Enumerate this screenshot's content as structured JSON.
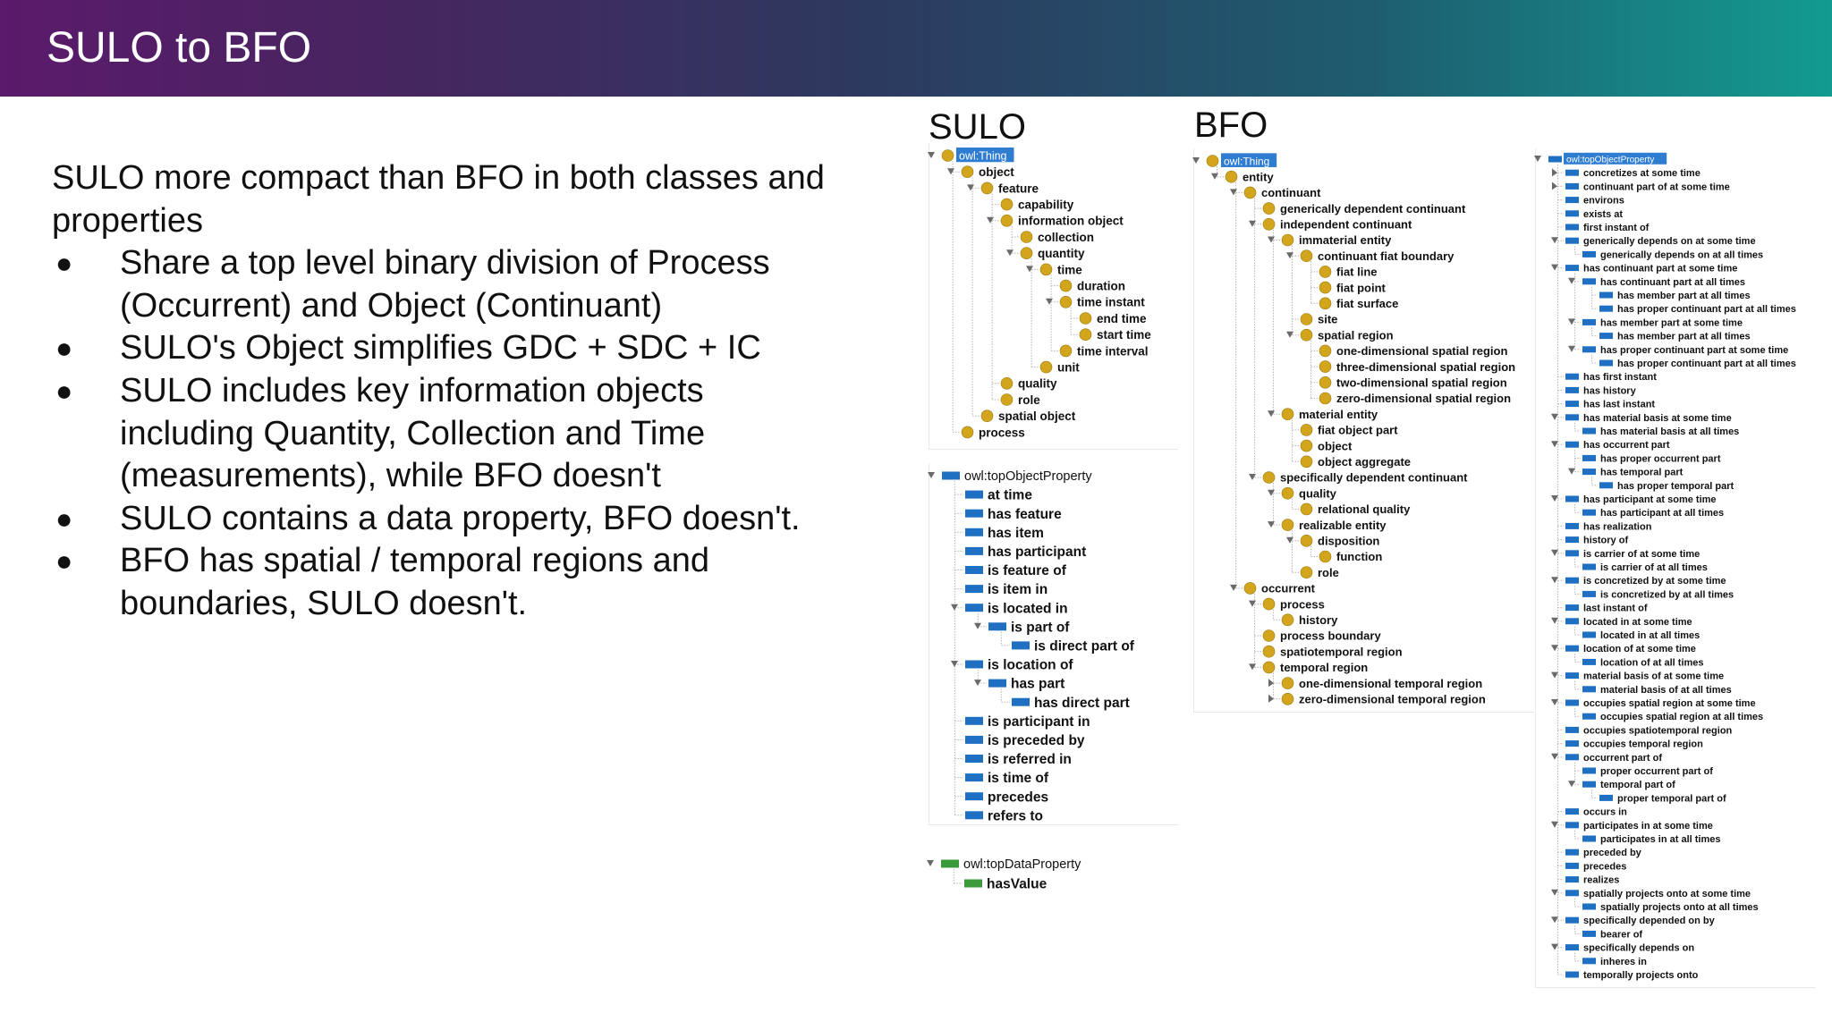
{
  "header": {
    "title": "SULO to BFO"
  },
  "intro": "SULO more compact than BFO in both classes and properties",
  "bullets": [
    "Share a top level binary division of Process (Occurrent) and Object (Continuant)",
    "SULO's Object simplifies GDC + SDC + IC",
    "SULO includes key information objects including Quantity, Collection and Time (measurements), while BFO doesn't",
    "SULO contains a data property, BFO doesn't.",
    "BFO has spatial / temporal regions and boundaries, SULO doesn't."
  ],
  "bullet_glyph": "●",
  "sulo_label": "SULO",
  "bfo_label": "BFO",
  "colors": {
    "class": "#d2a51c",
    "object_property": "#1f6fc2",
    "data_property": "#3a9a3a",
    "root_highlight": "#2e7dd1"
  },
  "trees": [
    {
      "id": "sulo-classes",
      "kind": "class",
      "nodes": [
        [
          0,
          "owl:Thing",
          1,
          1
        ],
        [
          1,
          "object",
          1,
          0
        ],
        [
          2,
          "feature",
          1,
          0
        ],
        [
          3,
          "capability",
          0,
          0
        ],
        [
          3,
          "information object",
          1,
          0
        ],
        [
          4,
          "collection",
          0,
          0
        ],
        [
          4,
          "quantity",
          1,
          0
        ],
        [
          5,
          "time",
          1,
          0
        ],
        [
          6,
          "duration",
          0,
          0
        ],
        [
          6,
          "time instant",
          1,
          0
        ],
        [
          7,
          "end time",
          0,
          0
        ],
        [
          7,
          "start time",
          0,
          0
        ],
        [
          6,
          "time interval",
          0,
          0
        ],
        [
          5,
          "unit",
          0,
          0
        ],
        [
          3,
          "quality",
          0,
          0
        ],
        [
          3,
          "role",
          0,
          0
        ],
        [
          2,
          "spatial object",
          0,
          0
        ],
        [
          1,
          "process",
          0,
          0
        ]
      ]
    },
    {
      "id": "sulo-object-properties",
      "kind": "object_property",
      "nodes": [
        [
          0,
          "owl:topObjectProperty",
          1,
          0
        ],
        [
          1,
          "at time",
          0,
          0
        ],
        [
          1,
          "has feature",
          0,
          0
        ],
        [
          1,
          "has item",
          0,
          0
        ],
        [
          1,
          "has participant",
          0,
          0
        ],
        [
          1,
          "is feature of",
          0,
          0
        ],
        [
          1,
          "is item in",
          0,
          0
        ],
        [
          1,
          "is located in",
          1,
          0
        ],
        [
          2,
          "is part of",
          1,
          0
        ],
        [
          3,
          "is direct part of",
          0,
          0
        ],
        [
          1,
          "is location of",
          1,
          0
        ],
        [
          2,
          "has part",
          1,
          0
        ],
        [
          3,
          "has direct part",
          0,
          0
        ],
        [
          1,
          "is participant in",
          0,
          0
        ],
        [
          1,
          "is preceded by",
          0,
          0
        ],
        [
          1,
          "is referred in",
          0,
          0
        ],
        [
          1,
          "is time of",
          0,
          0
        ],
        [
          1,
          "precedes",
          0,
          0
        ],
        [
          1,
          "refers to",
          0,
          0
        ]
      ]
    },
    {
      "id": "sulo-data-properties",
      "kind": "data_property",
      "nodes": [
        [
          0,
          "owl:topDataProperty",
          1,
          0
        ],
        [
          1,
          "hasValue",
          0,
          0
        ]
      ]
    },
    {
      "id": "bfo-classes",
      "kind": "class",
      "nodes": [
        [
          0,
          "owl:Thing",
          1,
          1
        ],
        [
          1,
          "entity",
          1,
          0
        ],
        [
          2,
          "continuant",
          1,
          0
        ],
        [
          3,
          "generically dependent continuant",
          0,
          0
        ],
        [
          3,
          "independent continuant",
          1,
          0
        ],
        [
          4,
          "immaterial entity",
          1,
          0
        ],
        [
          5,
          "continuant fiat boundary",
          1,
          0
        ],
        [
          6,
          "fiat line",
          0,
          0
        ],
        [
          6,
          "fiat point",
          0,
          0
        ],
        [
          6,
          "fiat surface",
          0,
          0
        ],
        [
          5,
          "site",
          0,
          0
        ],
        [
          5,
          "spatial region",
          1,
          0
        ],
        [
          6,
          "one-dimensional spatial region",
          0,
          0
        ],
        [
          6,
          "three-dimensional spatial region",
          0,
          0
        ],
        [
          6,
          "two-dimensional spatial region",
          0,
          0
        ],
        [
          6,
          "zero-dimensional spatial region",
          0,
          0
        ],
        [
          4,
          "material entity",
          1,
          0
        ],
        [
          5,
          "fiat object part",
          0,
          0
        ],
        [
          5,
          "object",
          0,
          0
        ],
        [
          5,
          "object aggregate",
          0,
          0
        ],
        [
          3,
          "specifically dependent continuant",
          1,
          0
        ],
        [
          4,
          "quality",
          1,
          0
        ],
        [
          5,
          "relational quality",
          0,
          0
        ],
        [
          4,
          "realizable entity",
          1,
          0
        ],
        [
          5,
          "disposition",
          1,
          0
        ],
        [
          6,
          "function",
          0,
          0
        ],
        [
          5,
          "role",
          0,
          0
        ],
        [
          2,
          "occurrent",
          1,
          0
        ],
        [
          3,
          "process",
          1,
          0
        ],
        [
          4,
          "history",
          0,
          0
        ],
        [
          3,
          "process boundary",
          0,
          0
        ],
        [
          3,
          "spatiotemporal region",
          0,
          0
        ],
        [
          3,
          "temporal region",
          1,
          0
        ],
        [
          4,
          "one-dimensional temporal region",
          2,
          0
        ],
        [
          4,
          "zero-dimensional temporal region",
          2,
          0
        ]
      ]
    },
    {
      "id": "bfo-object-properties",
      "kind": "object_property",
      "nodes": [
        [
          0,
          "owl:topObjectProperty",
          1,
          1
        ],
        [
          1,
          "concretizes at some time",
          2,
          0
        ],
        [
          1,
          "continuant part of at some time",
          2,
          0
        ],
        [
          1,
          "environs",
          0,
          0
        ],
        [
          1,
          "exists at",
          0,
          0
        ],
        [
          1,
          "first instant of",
          0,
          0
        ],
        [
          1,
          "generically depends on at some time",
          1,
          0
        ],
        [
          2,
          "generically depends on at all times",
          0,
          0
        ],
        [
          1,
          "has continuant part at some time",
          1,
          0
        ],
        [
          2,
          "has continuant part at all times",
          1,
          0
        ],
        [
          3,
          "has member part at all times",
          0,
          0
        ],
        [
          3,
          "has proper continuant part at all times",
          0,
          0
        ],
        [
          2,
          "has member part at some time",
          1,
          0
        ],
        [
          3,
          "has member part at all times",
          0,
          0
        ],
        [
          2,
          "has proper continuant part at some time",
          1,
          0
        ],
        [
          3,
          "has proper continuant part at all times",
          0,
          0
        ],
        [
          1,
          "has first instant",
          0,
          0
        ],
        [
          1,
          "has history",
          0,
          0
        ],
        [
          1,
          "has last instant",
          0,
          0
        ],
        [
          1,
          "has material basis at some time",
          1,
          0
        ],
        [
          2,
          "has material basis at all times",
          0,
          0
        ],
        [
          1,
          "has occurrent part",
          1,
          0
        ],
        [
          2,
          "has proper occurrent part",
          0,
          0
        ],
        [
          2,
          "has temporal part",
          1,
          0
        ],
        [
          3,
          "has proper temporal part",
          0,
          0
        ],
        [
          1,
          "has participant at some time",
          1,
          0
        ],
        [
          2,
          "has participant at all times",
          0,
          0
        ],
        [
          1,
          "has realization",
          0,
          0
        ],
        [
          1,
          "history of",
          0,
          0
        ],
        [
          1,
          "is carrier of at some time",
          1,
          0
        ],
        [
          2,
          "is carrier of at all times",
          0,
          0
        ],
        [
          1,
          "is concretized by at some time",
          1,
          0
        ],
        [
          2,
          "is concretized by at all times",
          0,
          0
        ],
        [
          1,
          "last instant of",
          0,
          0
        ],
        [
          1,
          "located in at some time",
          1,
          0
        ],
        [
          2,
          "located in at all times",
          0,
          0
        ],
        [
          1,
          "location of at some time",
          1,
          0
        ],
        [
          2,
          "location of at all times",
          0,
          0
        ],
        [
          1,
          "material basis of at some time",
          1,
          0
        ],
        [
          2,
          "material basis of at all times",
          0,
          0
        ],
        [
          1,
          "occupies spatial region at some time",
          1,
          0
        ],
        [
          2,
          "occupies spatial region at all times",
          0,
          0
        ],
        [
          1,
          "occupies spatiotemporal region",
          0,
          0
        ],
        [
          1,
          "occupies temporal region",
          0,
          0
        ],
        [
          1,
          "occurrent part of",
          1,
          0
        ],
        [
          2,
          "proper occurrent part of",
          0,
          0
        ],
        [
          2,
          "temporal part of",
          1,
          0
        ],
        [
          3,
          "proper temporal part of",
          0,
          0
        ],
        [
          1,
          "occurs in",
          0,
          0
        ],
        [
          1,
          "participates in at some time",
          1,
          0
        ],
        [
          2,
          "participates in at all times",
          0,
          0
        ],
        [
          1,
          "preceded by",
          0,
          0
        ],
        [
          1,
          "precedes",
          0,
          0
        ],
        [
          1,
          "realizes",
          0,
          0
        ],
        [
          1,
          "spatially projects onto at some time",
          1,
          0
        ],
        [
          2,
          "spatially projects onto at all times",
          0,
          0
        ],
        [
          1,
          "specifically depended on by",
          1,
          0
        ],
        [
          2,
          "bearer of",
          0,
          0
        ],
        [
          1,
          "specifically depends on",
          1,
          0
        ],
        [
          2,
          "inheres in",
          0,
          0
        ],
        [
          1,
          "temporally projects onto",
          0,
          0
        ]
      ]
    }
  ]
}
